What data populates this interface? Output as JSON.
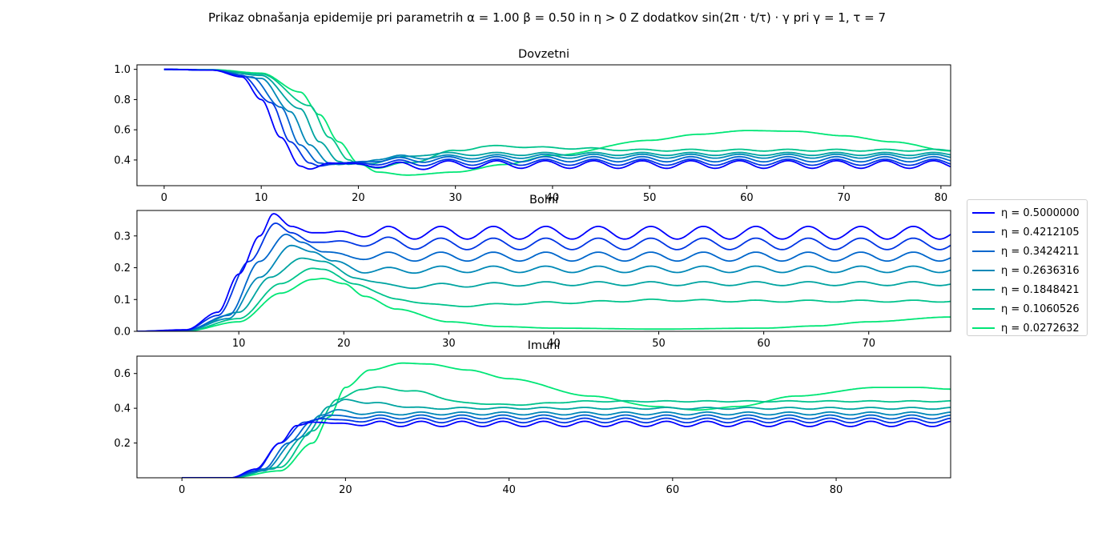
{
  "figure": {
    "suptitle": "Prikaz obnašanja epidemije pri parametrih α = 1.00 β = 0.50 in η > 0 Z dodatkov sin(2π · t/τ) · γ pri γ = 1, τ = 7"
  },
  "legend": {
    "placement": "right, outside axes",
    "entries": [
      {
        "label": "η = 0.5000000",
        "color": "#0000ff"
      },
      {
        "label": "η = 0.4212105",
        "color": "#0036e4"
      },
      {
        "label": "η = 0.3424211",
        "color": "#0066cc"
      },
      {
        "label": "η = 0.2636316",
        "color": "#0088b7"
      },
      {
        "label": "η = 0.1848421",
        "color": "#00a4a1"
      },
      {
        "label": "η = 0.1060526",
        "color": "#00c38c"
      },
      {
        "label": "η = 0.0272632",
        "color": "#00e676"
      }
    ]
  },
  "chart_data": [
    {
      "type": "line",
      "title": "Dovzetni",
      "xlabel": "",
      "ylabel": "",
      "xlim": [
        -2.8,
        81
      ],
      "ylim": [
        0.23,
        1.03
      ],
      "xticks": [
        "0",
        "10",
        "20",
        "30",
        "40",
        "50",
        "60",
        "70",
        "80"
      ],
      "yticks": [
        "0.4",
        "0.6",
        "0.8",
        "1.0"
      ],
      "grid": false,
      "series": [
        {
          "name": "η = 0.5000000",
          "x": [
            0,
            5,
            8,
            10,
            12,
            14,
            15,
            17,
            20,
            25,
            30,
            40,
            50,
            60,
            70,
            81
          ],
          "y": [
            1.0,
            0.995,
            0.95,
            0.8,
            0.55,
            0.36,
            0.34,
            0.38,
            0.37,
            0.36,
            0.37,
            0.37,
            0.37,
            0.37,
            0.37,
            0.37
          ],
          "osc_amp": 0.025
        },
        {
          "name": "η = 0.4212105",
          "x": [
            0,
            5,
            8,
            11,
            13,
            15,
            16,
            18,
            20,
            25,
            30,
            40,
            50,
            60,
            70,
            81
          ],
          "y": [
            1.0,
            0.995,
            0.96,
            0.78,
            0.52,
            0.38,
            0.36,
            0.38,
            0.38,
            0.38,
            0.385,
            0.385,
            0.385,
            0.385,
            0.385,
            0.385
          ],
          "osc_amp": 0.02
        },
        {
          "name": "η = 0.3424211",
          "x": [
            0,
            5,
            9,
            12,
            14,
            16,
            17,
            19,
            22,
            25,
            30,
            40,
            50,
            60,
            70,
            81
          ],
          "y": [
            1.0,
            0.995,
            0.95,
            0.75,
            0.5,
            0.38,
            0.37,
            0.38,
            0.4,
            0.4,
            0.405,
            0.405,
            0.405,
            0.405,
            0.405,
            0.405
          ],
          "osc_amp": 0.017
        },
        {
          "name": "η = 0.2636316",
          "x": [
            0,
            5,
            10,
            13,
            15,
            17,
            18,
            20,
            22,
            25,
            30,
            40,
            50,
            60,
            70,
            81
          ],
          "y": [
            1.0,
            0.995,
            0.94,
            0.72,
            0.5,
            0.38,
            0.37,
            0.38,
            0.41,
            0.42,
            0.42,
            0.425,
            0.425,
            0.425,
            0.425,
            0.425
          ],
          "osc_amp": 0.013
        },
        {
          "name": "η = 0.1848421",
          "x": [
            0,
            5,
            10,
            14,
            16,
            18,
            19,
            21,
            24,
            27,
            30,
            40,
            50,
            60,
            70,
            81
          ],
          "y": [
            1.0,
            0.995,
            0.96,
            0.74,
            0.52,
            0.39,
            0.37,
            0.38,
            0.41,
            0.44,
            0.44,
            0.44,
            0.44,
            0.44,
            0.44,
            0.44
          ],
          "osc_amp": 0.01
        },
        {
          "name": "η = 0.1060526",
          "x": [
            0,
            5,
            10,
            15,
            17,
            19,
            20,
            22,
            25,
            30,
            33,
            36,
            40,
            50,
            60,
            70,
            81
          ],
          "y": [
            1.0,
            0.995,
            0.97,
            0.76,
            0.55,
            0.4,
            0.37,
            0.35,
            0.38,
            0.46,
            0.49,
            0.49,
            0.48,
            0.465,
            0.465,
            0.465,
            0.465
          ],
          "osc_amp": 0.006
        },
        {
          "name": "η = 0.0272632",
          "x": [
            0,
            5,
            10,
            14,
            16,
            18,
            20,
            22,
            25,
            30,
            35,
            40,
            50,
            55,
            60,
            65,
            70,
            75,
            81
          ],
          "y": [
            1.0,
            0.998,
            0.975,
            0.85,
            0.7,
            0.52,
            0.38,
            0.32,
            0.3,
            0.32,
            0.37,
            0.43,
            0.53,
            0.57,
            0.595,
            0.59,
            0.56,
            0.52,
            0.46
          ],
          "osc_amp": 0.0
        }
      ]
    },
    {
      "type": "line",
      "title": "Bolni",
      "xlabel": "",
      "ylabel": "",
      "xlim": [
        0.3,
        77.8
      ],
      "ylim": [
        0.0,
        0.38
      ],
      "xticks": [
        "10",
        "20",
        "30",
        "40",
        "50",
        "60",
        "70"
      ],
      "yticks": [
        "0.0",
        "0.1",
        "0.2",
        "0.3"
      ],
      "grid": false,
      "series": [
        {
          "name": "η = 0.5000000",
          "x": [
            0.3,
            5,
            8,
            10,
            12,
            13.3,
            15,
            17,
            20,
            30,
            40,
            50,
            60,
            70,
            77.8
          ],
          "y": [
            0.0,
            0.005,
            0.06,
            0.18,
            0.3,
            0.37,
            0.33,
            0.31,
            0.31,
            0.31,
            0.31,
            0.31,
            0.31,
            0.31,
            0.31
          ],
          "osc_amp": 0.02
        },
        {
          "name": "η = 0.4212105",
          "x": [
            0.3,
            5,
            8,
            11,
            13.5,
            15,
            17,
            20,
            30,
            40,
            50,
            60,
            70,
            77.8
          ],
          "y": [
            0.0,
            0.004,
            0.05,
            0.22,
            0.34,
            0.31,
            0.28,
            0.28,
            0.275,
            0.275,
            0.275,
            0.275,
            0.275,
            0.275
          ],
          "osc_amp": 0.018
        },
        {
          "name": "η = 0.3424211",
          "x": [
            0.3,
            5,
            9,
            12,
            14.5,
            16,
            18,
            21,
            30,
            40,
            50,
            60,
            70,
            77.8
          ],
          "y": [
            0.0,
            0.003,
            0.05,
            0.22,
            0.305,
            0.28,
            0.25,
            0.235,
            0.235,
            0.235,
            0.235,
            0.235,
            0.235,
            0.235
          ],
          "osc_amp": 0.014
        },
        {
          "name": "η = 0.2636316",
          "x": [
            0.3,
            5,
            9,
            12,
            15,
            17,
            19,
            22,
            30,
            40,
            50,
            60,
            70,
            77.8
          ],
          "y": [
            0.0,
            0.002,
            0.04,
            0.17,
            0.27,
            0.25,
            0.22,
            0.19,
            0.195,
            0.195,
            0.195,
            0.195,
            0.195,
            0.195
          ],
          "osc_amp": 0.01
        },
        {
          "name": "η = 0.1848421",
          "x": [
            0.3,
            5,
            10,
            13,
            16,
            18,
            21,
            25,
            30,
            40,
            50,
            60,
            70,
            77.8
          ],
          "y": [
            0.0,
            0.002,
            0.06,
            0.17,
            0.23,
            0.22,
            0.17,
            0.14,
            0.145,
            0.15,
            0.15,
            0.15,
            0.15,
            0.15
          ],
          "osc_amp": 0.006
        },
        {
          "name": "η = 0.1060526",
          "x": [
            0.3,
            5,
            10,
            14,
            17,
            18,
            21,
            25,
            30,
            40,
            50,
            60,
            70,
            77.8
          ],
          "y": [
            0.0,
            0.001,
            0.04,
            0.15,
            0.198,
            0.195,
            0.15,
            0.1,
            0.08,
            0.09,
            0.098,
            0.095,
            0.095,
            0.095
          ],
          "osc_amp": 0.003
        },
        {
          "name": "η = 0.0272632",
          "x": [
            0.3,
            5,
            10,
            14,
            17,
            18,
            20,
            22,
            25,
            30,
            35,
            40,
            50,
            60,
            65,
            70,
            77.8
          ],
          "y": [
            0.0,
            0.001,
            0.03,
            0.12,
            0.163,
            0.166,
            0.15,
            0.11,
            0.07,
            0.03,
            0.015,
            0.01,
            0.007,
            0.01,
            0.017,
            0.03,
            0.045
          ],
          "osc_amp": 0.0
        }
      ]
    },
    {
      "type": "line",
      "title": "Imuni",
      "xlabel": "",
      "ylabel": "",
      "xlim": [
        -5.5,
        94
      ],
      "ylim": [
        0.0,
        0.7
      ],
      "xticks": [
        "0",
        "20",
        "40",
        "60",
        "80"
      ],
      "yticks": [
        "0.2",
        "0.4",
        "0.6"
      ],
      "grid": false,
      "series": [
        {
          "name": "η = 0.5000000",
          "x": [
            0,
            6,
            9,
            12,
            14,
            16,
            20,
            30,
            40,
            60,
            80,
            94
          ],
          "y": [
            0.0,
            0.0,
            0.05,
            0.2,
            0.3,
            0.32,
            0.31,
            0.31,
            0.31,
            0.31,
            0.31,
            0.31
          ],
          "osc_amp": 0.015
        },
        {
          "name": "η = 0.4212105",
          "x": [
            0,
            6,
            9,
            12,
            15,
            17,
            20,
            30,
            40,
            60,
            80,
            94
          ],
          "y": [
            0.0,
            0.0,
            0.04,
            0.2,
            0.32,
            0.34,
            0.33,
            0.33,
            0.33,
            0.33,
            0.33,
            0.33
          ],
          "osc_amp": 0.013
        },
        {
          "name": "η = 0.3424211",
          "x": [
            0,
            6,
            10,
            13,
            16,
            18,
            21,
            30,
            40,
            60,
            80,
            94
          ],
          "y": [
            0.0,
            0.0,
            0.05,
            0.2,
            0.33,
            0.36,
            0.35,
            0.35,
            0.35,
            0.35,
            0.35,
            0.35
          ],
          "osc_amp": 0.011
        },
        {
          "name": "η = 0.2636316",
          "x": [
            0,
            6,
            10,
            14,
            17,
            19,
            22,
            30,
            40,
            60,
            80,
            94
          ],
          "y": [
            0.0,
            0.0,
            0.04,
            0.22,
            0.36,
            0.39,
            0.37,
            0.37,
            0.37,
            0.37,
            0.37,
            0.37
          ],
          "osc_amp": 0.008
        },
        {
          "name": "η = 0.1848421",
          "x": [
            0,
            6,
            11,
            15,
            18,
            20,
            23,
            30,
            40,
            60,
            80,
            94
          ],
          "y": [
            0.0,
            0.0,
            0.05,
            0.24,
            0.41,
            0.45,
            0.43,
            0.4,
            0.4,
            0.4,
            0.4,
            0.4
          ],
          "osc_amp": 0.005
        },
        {
          "name": "η = 0.1060526",
          "x": [
            0,
            6,
            12,
            16,
            19,
            22,
            24,
            28,
            35,
            40,
            50,
            60,
            80,
            94
          ],
          "y": [
            0.0,
            0.0,
            0.06,
            0.27,
            0.45,
            0.51,
            0.52,
            0.5,
            0.43,
            0.42,
            0.44,
            0.44,
            0.44,
            0.44
          ],
          "osc_amp": 0.003
        },
        {
          "name": "η = 0.0272632",
          "x": [
            0,
            6,
            12,
            16,
            18,
            20,
            23,
            27,
            30,
            35,
            40,
            50,
            58,
            63,
            68,
            75,
            85,
            90,
            94
          ],
          "y": [
            0.0,
            0.0,
            0.04,
            0.2,
            0.35,
            0.52,
            0.62,
            0.66,
            0.655,
            0.62,
            0.57,
            0.47,
            0.41,
            0.39,
            0.41,
            0.47,
            0.52,
            0.52,
            0.51
          ],
          "osc_amp": 0.0
        }
      ]
    }
  ]
}
